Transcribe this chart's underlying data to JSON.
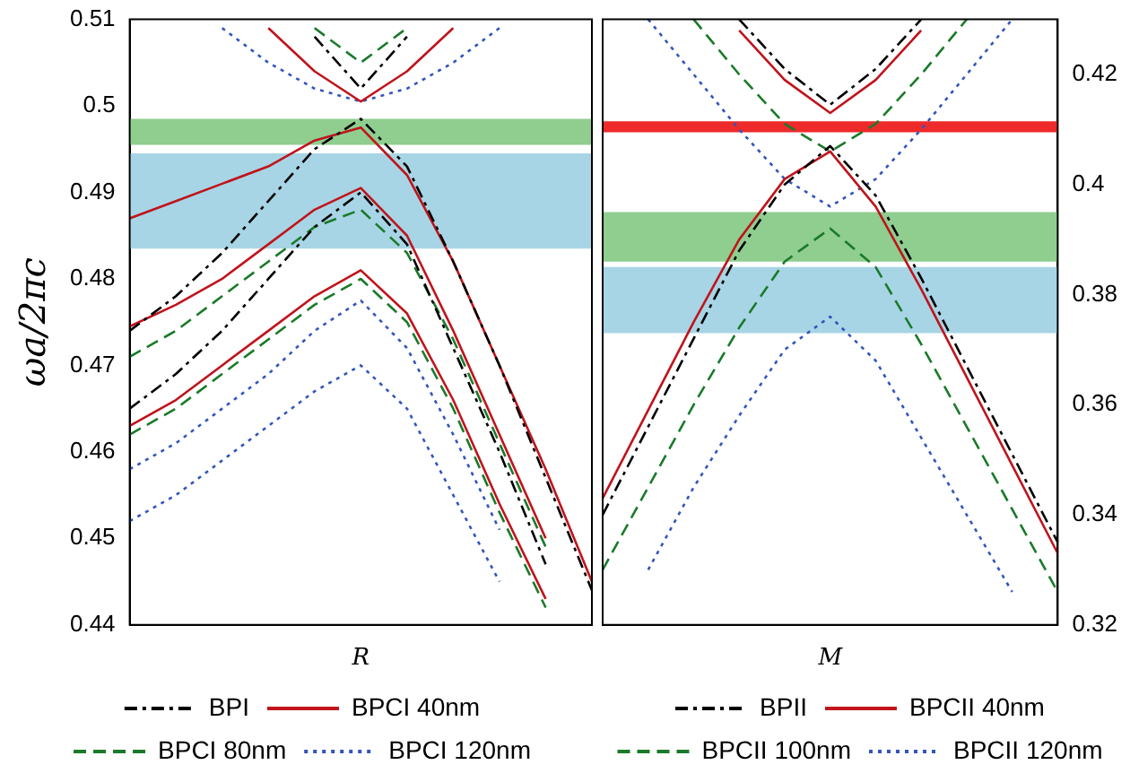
{
  "chart_data": [
    {
      "type": "line",
      "ylabel": "ωa/2πc",
      "categories": [
        null,
        null,
        null,
        null,
        null,
        "R",
        null,
        null,
        null,
        null,
        null
      ],
      "ylim": [
        0.44,
        0.51
      ],
      "yticks": [
        0.44,
        0.45,
        0.46,
        0.47,
        0.48,
        0.49,
        0.5,
        0.51
      ],
      "legend": "bottom",
      "marker": "none",
      "bands": [
        {
          "axis": "y",
          "from": 0.4955,
          "to": 0.4985,
          "color": "#8fce8f"
        },
        {
          "axis": "y",
          "from": 0.4835,
          "to": 0.4945,
          "color": "#a8d5e5"
        }
      ],
      "series": [
        {
          "name": "BPI",
          "color": "#000000",
          "line_style": "dashdot",
          "values": [
            0.474,
            0.478,
            0.483,
            0.489,
            0.495,
            0.4985,
            0.493,
            0.482,
            0.47,
            0.457,
            0.444
          ]
        },
        {
          "color": "#000000",
          "line_style": "dashdot",
          "values": [
            null,
            null,
            null,
            null,
            0.508,
            0.502,
            0.508,
            null,
            null,
            null,
            null
          ]
        },
        {
          "color": "#000000",
          "line_style": "dashdot",
          "values": [
            0.465,
            0.469,
            0.474,
            0.48,
            0.486,
            0.49,
            0.484,
            0.472,
            0.46,
            0.447,
            null
          ]
        },
        {
          "name": "BPCI 40nm",
          "color": "#c0141c",
          "line_style": "solid",
          "values": [
            0.487,
            0.489,
            0.491,
            0.493,
            0.496,
            0.4975,
            0.492,
            0.482,
            0.47,
            0.458,
            0.445
          ]
        },
        {
          "color": "#c0141c",
          "line_style": "solid",
          "values": [
            null,
            null,
            null,
            0.509,
            0.504,
            0.5005,
            0.504,
            0.509,
            null,
            null,
            null
          ]
        },
        {
          "color": "#c0141c",
          "line_style": "solid",
          "values": [
            0.4745,
            0.477,
            0.48,
            0.484,
            0.488,
            0.4905,
            0.485,
            0.474,
            0.462,
            0.45,
            null
          ]
        },
        {
          "color": "#c0141c",
          "line_style": "solid",
          "values": [
            0.463,
            0.466,
            0.47,
            0.474,
            0.478,
            0.481,
            0.476,
            0.466,
            0.454,
            0.443,
            null
          ]
        },
        {
          "name": "BPCI 80nm",
          "color": "#1a7a2a",
          "line_style": "dashed",
          "values": [
            0.471,
            0.474,
            0.478,
            0.482,
            0.486,
            0.488,
            0.483,
            0.473,
            0.461,
            0.449,
            null
          ]
        },
        {
          "color": "#1a7a2a",
          "line_style": "dashed",
          "values": [
            null,
            null,
            null,
            null,
            0.509,
            0.505,
            0.509,
            null,
            null,
            null,
            null
          ]
        },
        {
          "color": "#1a7a2a",
          "line_style": "dashed",
          "values": [
            0.462,
            0.465,
            0.469,
            0.473,
            0.477,
            0.48,
            0.475,
            0.465,
            0.453,
            0.442,
            null
          ]
        },
        {
          "name": "BPCI 120nm",
          "color": "#3355bb",
          "line_style": "dotted",
          "values": [
            0.458,
            0.461,
            0.465,
            0.469,
            0.474,
            0.4775,
            0.472,
            0.462,
            0.451,
            null,
            null
          ]
        },
        {
          "color": "#3355bb",
          "line_style": "dotted",
          "values": [
            null,
            null,
            0.509,
            0.505,
            0.502,
            0.5005,
            0.502,
            0.505,
            0.509,
            null,
            null
          ]
        },
        {
          "color": "#3355bb",
          "line_style": "dotted",
          "values": [
            0.452,
            0.455,
            0.459,
            0.463,
            0.467,
            0.47,
            0.465,
            0.455,
            0.445,
            null,
            null
          ]
        }
      ]
    },
    {
      "type": "line",
      "categories": [
        null,
        null,
        null,
        null,
        null,
        "M",
        null,
        null,
        null,
        null,
        null
      ],
      "y2lim": [
        0.32,
        0.43
      ],
      "y2ticks": [
        0.32,
        0.34,
        0.36,
        0.38,
        0.4,
        0.42
      ],
      "legend": "bottom",
      "marker": "none",
      "bands": [
        {
          "axis": "y2",
          "from": 0.4095,
          "to": 0.4115,
          "color": "#ee2a2a"
        },
        {
          "axis": "y2",
          "from": 0.386,
          "to": 0.395,
          "color": "#8fce8f"
        },
        {
          "axis": "y2",
          "from": 0.373,
          "to": 0.385,
          "color": "#a8d5e5"
        }
      ],
      "series": [
        {
          "name": "BPII",
          "axis": "y2",
          "color": "#000000",
          "line_style": "dashdot",
          "values": [
            0.34,
            0.356,
            0.372,
            0.388,
            0.4,
            0.407,
            0.398,
            0.383,
            0.367,
            0.351,
            0.335
          ]
        },
        {
          "axis": "y2",
          "color": "#000000",
          "line_style": "dashdot",
          "values": [
            null,
            null,
            null,
            0.43,
            0.421,
            0.4145,
            0.421,
            0.43,
            null,
            null,
            null
          ]
        },
        {
          "name": "BPCII 40nm",
          "axis": "y2",
          "color": "#c0141c",
          "line_style": "solid",
          "values": [
            0.343,
            0.359,
            0.375,
            0.39,
            0.401,
            0.406,
            0.396,
            0.381,
            0.365,
            0.349,
            0.333
          ]
        },
        {
          "axis": "y2",
          "color": "#c0141c",
          "line_style": "solid",
          "values": [
            null,
            null,
            null,
            0.428,
            0.419,
            0.413,
            0.419,
            0.428,
            null,
            null,
            null
          ]
        },
        {
          "name": "BPCII 100nm",
          "axis": "y2",
          "color": "#1a7a2a",
          "line_style": "dashed",
          "values": [
            0.33,
            0.345,
            0.36,
            0.374,
            0.386,
            0.392,
            0.385,
            0.371,
            0.356,
            0.341,
            0.326
          ]
        },
        {
          "axis": "y2",
          "color": "#1a7a2a",
          "line_style": "dashed",
          "values": [
            null,
            null,
            0.43,
            0.42,
            0.411,
            0.406,
            0.411,
            0.42,
            0.43,
            null,
            null
          ]
        },
        {
          "name": "BPCII 120nm",
          "axis": "y2",
          "color": "#3355bb",
          "line_style": "dotted",
          "values": [
            null,
            0.33,
            0.345,
            0.358,
            0.37,
            0.376,
            0.368,
            0.354,
            0.34,
            0.326,
            null
          ]
        },
        {
          "axis": "y2",
          "color": "#3355bb",
          "line_style": "dotted",
          "values": [
            null,
            0.43,
            0.42,
            0.41,
            0.401,
            0.396,
            0.401,
            0.41,
            0.42,
            0.43,
            null
          ]
        }
      ]
    }
  ]
}
